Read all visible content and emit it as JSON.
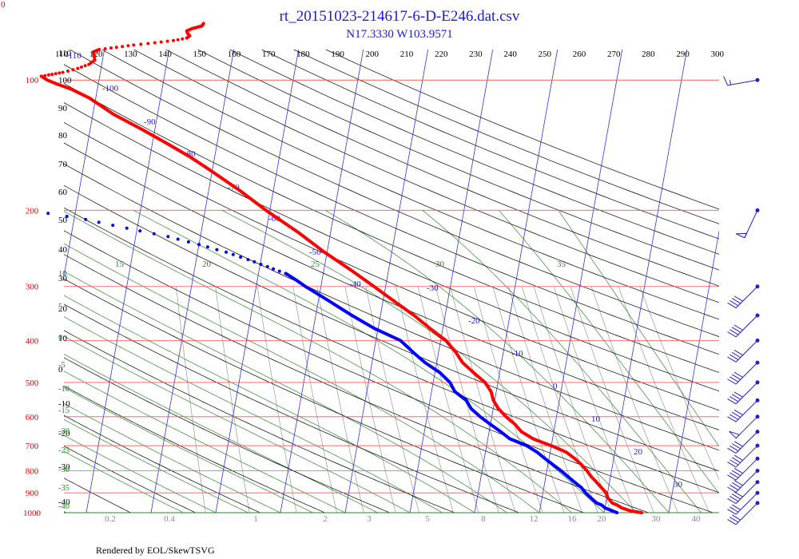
{
  "title": "rt_20151023-214617-6-D-E246.dat.csv",
  "subtitle": "N17.3330 W103.9571",
  "corner_label": "0",
  "footer": "Rendered by EOL/SkewTSVG",
  "colors": {
    "temperature": "#ff0000",
    "dewpoint": "#0000ff",
    "isobar": "#ff5050",
    "isotherm": "#3333dd",
    "dry_adiabat": "#000000",
    "moist_adiabat": "#2a8a2a",
    "mixing_ratio": "#999999",
    "label_blue": "#1a1adc",
    "label_green": "#2a8a2a",
    "label_red": "#e00000",
    "wind_barb": "#2020cc"
  },
  "chart_data": {
    "type": "skew-t log-p diagram",
    "title": "rt_20151023-214617-6-D-E246.dat.csv",
    "subtitle": "N17.3330 W103.9571",
    "pressure_axis": {
      "ticks": [
        100,
        200,
        300,
        400,
        500,
        600,
        700,
        800,
        900,
        1000
      ],
      "scale": "log"
    },
    "top_scale_labels": [
      "110",
      "120",
      "130",
      "140",
      "150",
      "160",
      "170",
      "180",
      "190",
      "200",
      "210",
      "220",
      "230",
      "240",
      "250",
      "260",
      "270",
      "280",
      "290",
      "300"
    ],
    "left_temperature_labels": [
      "110",
      "100",
      "90",
      "80",
      "70",
      "60",
      "50",
      "40",
      "30",
      "20",
      "10",
      "0",
      "-10",
      "-20",
      "-30",
      "-40"
    ],
    "isotherm_labels": [
      "-110",
      "-100",
      "-90",
      "-80",
      "-70",
      "-60",
      "-50",
      "-40",
      "-30",
      "-20",
      "-10",
      "0",
      "10",
      "20",
      "30"
    ],
    "moist_adiabat_top_labels": [
      "15",
      "20",
      "25",
      "30",
      "35"
    ],
    "moist_adiabat_left_labels": [
      "10",
      "5",
      "0",
      "-5",
      "-10",
      "-15",
      "-20",
      "-25",
      "-30",
      "-35",
      "-40"
    ],
    "mixing_ratio_labels": [
      "0.2",
      "0.4",
      "1",
      "2",
      "3",
      "5",
      "8",
      "12",
      "16",
      "20",
      "30",
      "40"
    ],
    "temperature_profile": [
      [
        1000,
        25.8
      ],
      [
        990,
        24.0
      ],
      [
        975,
        22.6
      ],
      [
        960,
        21.8
      ],
      [
        950,
        21.0
      ],
      [
        925,
        20.2
      ],
      [
        900,
        19.8
      ],
      [
        875,
        18.9
      ],
      [
        850,
        18.0
      ],
      [
        825,
        17.0
      ],
      [
        800,
        16.2
      ],
      [
        775,
        15.2
      ],
      [
        750,
        14.0
      ],
      [
        725,
        12.5
      ],
      [
        700,
        10.0
      ],
      [
        690,
        8.8
      ],
      [
        675,
        7.0
      ],
      [
        650,
        5.0
      ],
      [
        625,
        3.8
      ],
      [
        600,
        2.2
      ],
      [
        575,
        0.8
      ],
      [
        550,
        -0.2
      ],
      [
        525,
        -0.8
      ],
      [
        500,
        -2.0
      ],
      [
        475,
        -4.0
      ],
      [
        450,
        -6.0
      ],
      [
        425,
        -7.4
      ],
      [
        400,
        -9.2
      ],
      [
        375,
        -12.0
      ],
      [
        350,
        -14.8
      ],
      [
        325,
        -18.2
      ],
      [
        300,
        -21.8
      ],
      [
        275,
        -25.8
      ],
      [
        250,
        -30.4
      ],
      [
        225,
        -35.0
      ],
      [
        200,
        -40.6
      ],
      [
        180,
        -45.2
      ],
      [
        160,
        -50.8
      ],
      [
        150,
        -54.0
      ],
      [
        140,
        -57.8
      ],
      [
        130,
        -62.0
      ],
      [
        120,
        -66.8
      ],
      [
        110,
        -71.0
      ],
      [
        105,
        -74.0
      ],
      [
        102,
        -76.5
      ],
      [
        100,
        -78.0
      ],
      [
        98,
        -79.0
      ]
    ],
    "temperature_profile_upper_dotted": [
      [
        98,
        -79.0
      ],
      [
        97,
        -77.4
      ],
      [
        96,
        -75.8
      ],
      [
        94,
        -73.6
      ],
      [
        92,
        -72.0
      ],
      [
        90,
        -71.2
      ],
      [
        88,
        -71.4
      ],
      [
        86,
        -71.6
      ],
      [
        85,
        -70.8
      ],
      [
        84,
        -68.2
      ],
      [
        83,
        -65.6
      ],
      [
        82,
        -62.4
      ],
      [
        81,
        -59.6
      ],
      [
        80,
        -57.6
      ]
    ],
    "temperature_profile_upper_solid": [
      [
        80,
        -57.6
      ],
      [
        79,
        -57.2
      ],
      [
        78,
        -57.6
      ],
      [
        77,
        -57.8
      ],
      [
        76,
        -57.0
      ],
      [
        75,
        -55.6
      ],
      [
        74,
        -55.4
      ]
    ],
    "dewpoint_profile": [
      [
        1000,
        22.0
      ],
      [
        990,
        21.2
      ],
      [
        975,
        20.0
      ],
      [
        960,
        19.4
      ],
      [
        950,
        18.6
      ],
      [
        925,
        17.6
      ],
      [
        900,
        16.6
      ],
      [
        875,
        15.8
      ],
      [
        850,
        14.6
      ],
      [
        825,
        13.4
      ],
      [
        800,
        12.2
      ],
      [
        775,
        10.8
      ],
      [
        750,
        9.4
      ],
      [
        725,
        8.0
      ],
      [
        700,
        6.2
      ],
      [
        675,
        3.4
      ],
      [
        650,
        1.8
      ],
      [
        625,
        0.0
      ],
      [
        600,
        -1.8
      ],
      [
        575,
        -3.4
      ],
      [
        550,
        -4.4
      ],
      [
        525,
        -6.4
      ],
      [
        500,
        -7.4
      ],
      [
        475,
        -9.2
      ],
      [
        450,
        -11.8
      ],
      [
        425,
        -14.0
      ],
      [
        400,
        -16.2
      ],
      [
        375,
        -20.6
      ],
      [
        350,
        -24.4
      ],
      [
        325,
        -28.2
      ],
      [
        300,
        -32.4
      ],
      [
        290,
        -34.0
      ],
      [
        280,
        -35.8
      ]
    ],
    "dewpoint_profile_upper_dotted": [
      [
        280,
        -35.8
      ],
      [
        270,
        -38.8
      ],
      [
        260,
        -42.0
      ],
      [
        250,
        -45.6
      ],
      [
        240,
        -50.0
      ],
      [
        230,
        -55.0
      ],
      [
        220,
        -61.6
      ],
      [
        210,
        -68.2
      ],
      [
        200,
        -77.0
      ]
    ],
    "wind_barbs": [
      {
        "pressure": 100,
        "direction_deg": 80,
        "speed_kt": 15
      },
      {
        "pressure": 200,
        "direction_deg": 25,
        "speed_kt": 50
      },
      {
        "pressure": 300,
        "direction_deg": 45,
        "speed_kt": 40
      },
      {
        "pressure": 350,
        "direction_deg": 45,
        "speed_kt": 40
      },
      {
        "pressure": 400,
        "direction_deg": 45,
        "speed_kt": 40
      },
      {
        "pressure": 450,
        "direction_deg": 45,
        "speed_kt": 40
      },
      {
        "pressure": 500,
        "direction_deg": 45,
        "speed_kt": 40
      },
      {
        "pressure": 550,
        "direction_deg": 45,
        "speed_kt": 40
      },
      {
        "pressure": 600,
        "direction_deg": 45,
        "speed_kt": 50
      },
      {
        "pressure": 650,
        "direction_deg": 45,
        "speed_kt": 40
      },
      {
        "pressure": 700,
        "direction_deg": 45,
        "speed_kt": 40
      },
      {
        "pressure": 750,
        "direction_deg": 45,
        "speed_kt": 40
      },
      {
        "pressure": 800,
        "direction_deg": 45,
        "speed_kt": 40
      },
      {
        "pressure": 850,
        "direction_deg": 45,
        "speed_kt": 40
      },
      {
        "pressure": 900,
        "direction_deg": 45,
        "speed_kt": 30
      },
      {
        "pressure": 950,
        "direction_deg": 45,
        "speed_kt": 30
      }
    ]
  }
}
